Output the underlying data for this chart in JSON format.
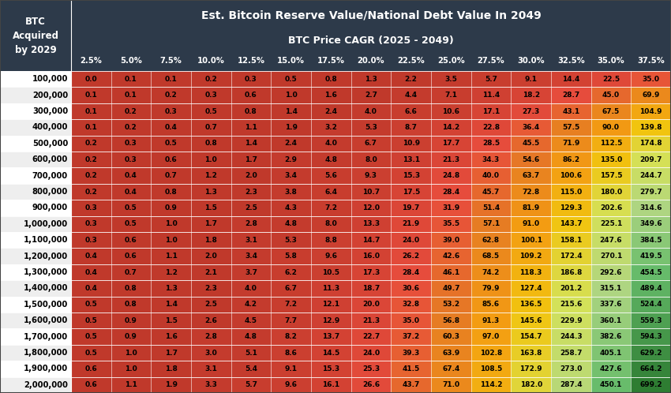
{
  "title_line1": "Est. Bitcoin Reserve Value/National Debt Value In 2049",
  "title_line2": "BTC Price CAGR (2025 - 2049)",
  "row_header": "BTC\nAcquired\nby 2029",
  "col_headers": [
    "2.5%",
    "5.0%",
    "7.5%",
    "10.0%",
    "12.5%",
    "15.0%",
    "17.5%",
    "20.0%",
    "22.5%",
    "25.0%",
    "27.5%",
    "30.0%",
    "32.5%",
    "35.0%",
    "37.5%"
  ],
  "row_labels": [
    "100,000",
    "200,000",
    "300,000",
    "400,000",
    "500,000",
    "600,000",
    "700,000",
    "800,000",
    "900,000",
    "1,000,000",
    "1,100,000",
    "1,200,000",
    "1,300,000",
    "1,400,000",
    "1,500,000",
    "1,600,000",
    "1,700,000",
    "1,800,000",
    "1,900,000",
    "2,000,000"
  ],
  "data": [
    [
      0.0,
      0.1,
      0.1,
      0.2,
      0.3,
      0.5,
      0.8,
      1.3,
      2.2,
      3.5,
      5.7,
      9.1,
      14.4,
      22.5,
      35.0
    ],
    [
      0.1,
      0.1,
      0.2,
      0.3,
      0.6,
      1.0,
      1.6,
      2.7,
      4.4,
      7.1,
      11.4,
      18.2,
      28.7,
      45.0,
      69.9
    ],
    [
      0.1,
      0.2,
      0.3,
      0.5,
      0.8,
      1.4,
      2.4,
      4.0,
      6.6,
      10.6,
      17.1,
      27.3,
      43.1,
      67.5,
      104.9
    ],
    [
      0.1,
      0.2,
      0.4,
      0.7,
      1.1,
      1.9,
      3.2,
      5.3,
      8.7,
      14.2,
      22.8,
      36.4,
      57.5,
      90.0,
      139.8
    ],
    [
      0.2,
      0.3,
      0.5,
      0.8,
      1.4,
      2.4,
      4.0,
      6.7,
      10.9,
      17.7,
      28.5,
      45.5,
      71.9,
      112.5,
      174.8
    ],
    [
      0.2,
      0.3,
      0.6,
      1.0,
      1.7,
      2.9,
      4.8,
      8.0,
      13.1,
      21.3,
      34.3,
      54.6,
      86.2,
      135.0,
      209.7
    ],
    [
      0.2,
      0.4,
      0.7,
      1.2,
      2.0,
      3.4,
      5.6,
      9.3,
      15.3,
      24.8,
      40.0,
      63.7,
      100.6,
      157.5,
      244.7
    ],
    [
      0.2,
      0.4,
      0.8,
      1.3,
      2.3,
      3.8,
      6.4,
      10.7,
      17.5,
      28.4,
      45.7,
      72.8,
      115.0,
      180.0,
      279.7
    ],
    [
      0.3,
      0.5,
      0.9,
      1.5,
      2.5,
      4.3,
      7.2,
      12.0,
      19.7,
      31.9,
      51.4,
      81.9,
      129.3,
      202.6,
      314.6
    ],
    [
      0.3,
      0.5,
      1.0,
      1.7,
      2.8,
      4.8,
      8.0,
      13.3,
      21.9,
      35.5,
      57.1,
      91.0,
      143.7,
      225.1,
      349.6
    ],
    [
      0.3,
      0.6,
      1.0,
      1.8,
      3.1,
      5.3,
      8.8,
      14.7,
      24.0,
      39.0,
      62.8,
      100.1,
      158.1,
      247.6,
      384.5
    ],
    [
      0.4,
      0.6,
      1.1,
      2.0,
      3.4,
      5.8,
      9.6,
      16.0,
      26.2,
      42.6,
      68.5,
      109.2,
      172.4,
      270.1,
      419.5
    ],
    [
      0.4,
      0.7,
      1.2,
      2.1,
      3.7,
      6.2,
      10.5,
      17.3,
      28.4,
      46.1,
      74.2,
      118.3,
      186.8,
      292.6,
      454.5
    ],
    [
      0.4,
      0.8,
      1.3,
      2.3,
      4.0,
      6.7,
      11.3,
      18.7,
      30.6,
      49.7,
      79.9,
      127.4,
      201.2,
      315.1,
      489.4
    ],
    [
      0.5,
      0.8,
      1.4,
      2.5,
      4.2,
      7.2,
      12.1,
      20.0,
      32.8,
      53.2,
      85.6,
      136.5,
      215.6,
      337.6,
      524.4
    ],
    [
      0.5,
      0.9,
      1.5,
      2.6,
      4.5,
      7.7,
      12.9,
      21.3,
      35.0,
      56.8,
      91.3,
      145.6,
      229.9,
      360.1,
      559.3
    ],
    [
      0.5,
      0.9,
      1.6,
      2.8,
      4.8,
      8.2,
      13.7,
      22.7,
      37.2,
      60.3,
      97.0,
      154.7,
      244.3,
      382.6,
      594.3
    ],
    [
      0.5,
      1.0,
      1.7,
      3.0,
      5.1,
      8.6,
      14.5,
      24.0,
      39.3,
      63.9,
      102.8,
      163.8,
      258.7,
      405.1,
      629.2
    ],
    [
      0.6,
      1.0,
      1.8,
      3.1,
      5.4,
      9.1,
      15.3,
      25.3,
      41.5,
      67.4,
      108.5,
      172.9,
      273.0,
      427.6,
      664.2
    ],
    [
      0.6,
      1.1,
      1.9,
      3.3,
      5.7,
      9.6,
      16.1,
      26.6,
      43.7,
      71.0,
      114.2,
      182.0,
      287.4,
      450.1,
      699.2
    ]
  ],
  "header_bg": "#2d3a4a",
  "header_text": "#ffffff",
  "col_header_text": "#ffffff",
  "fig_bg": "#ffffff",
  "colormap_stops": [
    [
      0.0,
      "#c0392b"
    ],
    [
      0.04,
      "#e74c3c"
    ],
    [
      0.08,
      "#e67e22"
    ],
    [
      0.13,
      "#f39c12"
    ],
    [
      0.2,
      "#f1c40f"
    ],
    [
      0.3,
      "#d4e157"
    ],
    [
      0.45,
      "#aed581"
    ],
    [
      0.65,
      "#66bb6a"
    ],
    [
      1.0,
      "#2e7d32"
    ]
  ]
}
